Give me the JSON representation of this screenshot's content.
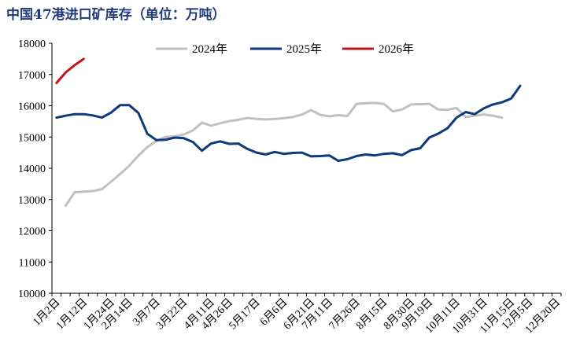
{
  "chart_data": {
    "type": "line",
    "title": "中国47港进口矿库存（单位：万吨）",
    "xlabel": "",
    "ylabel": "",
    "ylim": [
      10000,
      18000
    ],
    "yticks": [
      10000,
      11000,
      12000,
      13000,
      14000,
      15000,
      16000,
      17000,
      18000
    ],
    "x_tick_labels": [
      "1月2日",
      "1月12日",
      "1月24日",
      "2月14日",
      "3月7日",
      "3月22日",
      "4月11日",
      "4月26日",
      "5月17日",
      "6月6日",
      "6月21日",
      "7月11日",
      "7月26日",
      "8月15日",
      "8月30日",
      "9月19日",
      "10月11日",
      "10月31日",
      "11月15日",
      "12月5日",
      "12月20日"
    ],
    "x_count": 56,
    "legend_position": "top",
    "series": [
      {
        "name": "2024年",
        "color": "#c0c0c0",
        "start_index": 1,
        "values": [
          12800,
          13230,
          13250,
          13270,
          13330,
          13570,
          13820,
          14080,
          14400,
          14680,
          14880,
          15000,
          15020,
          15080,
          15210,
          15460,
          15360,
          15440,
          15510,
          15550,
          15610,
          15580,
          15560,
          15580,
          15600,
          15640,
          15720,
          15860,
          15710,
          15660,
          15700,
          15670,
          16060,
          16080,
          16090,
          16060,
          15820,
          15880,
          16040,
          16050,
          16060,
          15880,
          15870,
          15930,
          15640,
          15680,
          15720,
          15680,
          15620
        ]
      },
      {
        "name": "2025年",
        "color": "#0d3a7a",
        "start_index": 0,
        "values": [
          15620,
          15680,
          15730,
          15730,
          15690,
          15620,
          15780,
          16020,
          16020,
          15770,
          15100,
          14900,
          14910,
          14980,
          14960,
          14840,
          14560,
          14790,
          14860,
          14780,
          14790,
          14620,
          14500,
          14440,
          14520,
          14460,
          14490,
          14500,
          14380,
          14390,
          14410,
          14240,
          14290,
          14390,
          14440,
          14410,
          14460,
          14480,
          14420,
          14580,
          14640,
          14980,
          15110,
          15280,
          15620,
          15800,
          15730,
          15920,
          16040,
          16110,
          16230,
          16640
        ]
      },
      {
        "name": "2026年",
        "color": "#c0141c",
        "start_index": 0,
        "values": [
          16730,
          17060,
          17300,
          17500
        ]
      }
    ]
  }
}
